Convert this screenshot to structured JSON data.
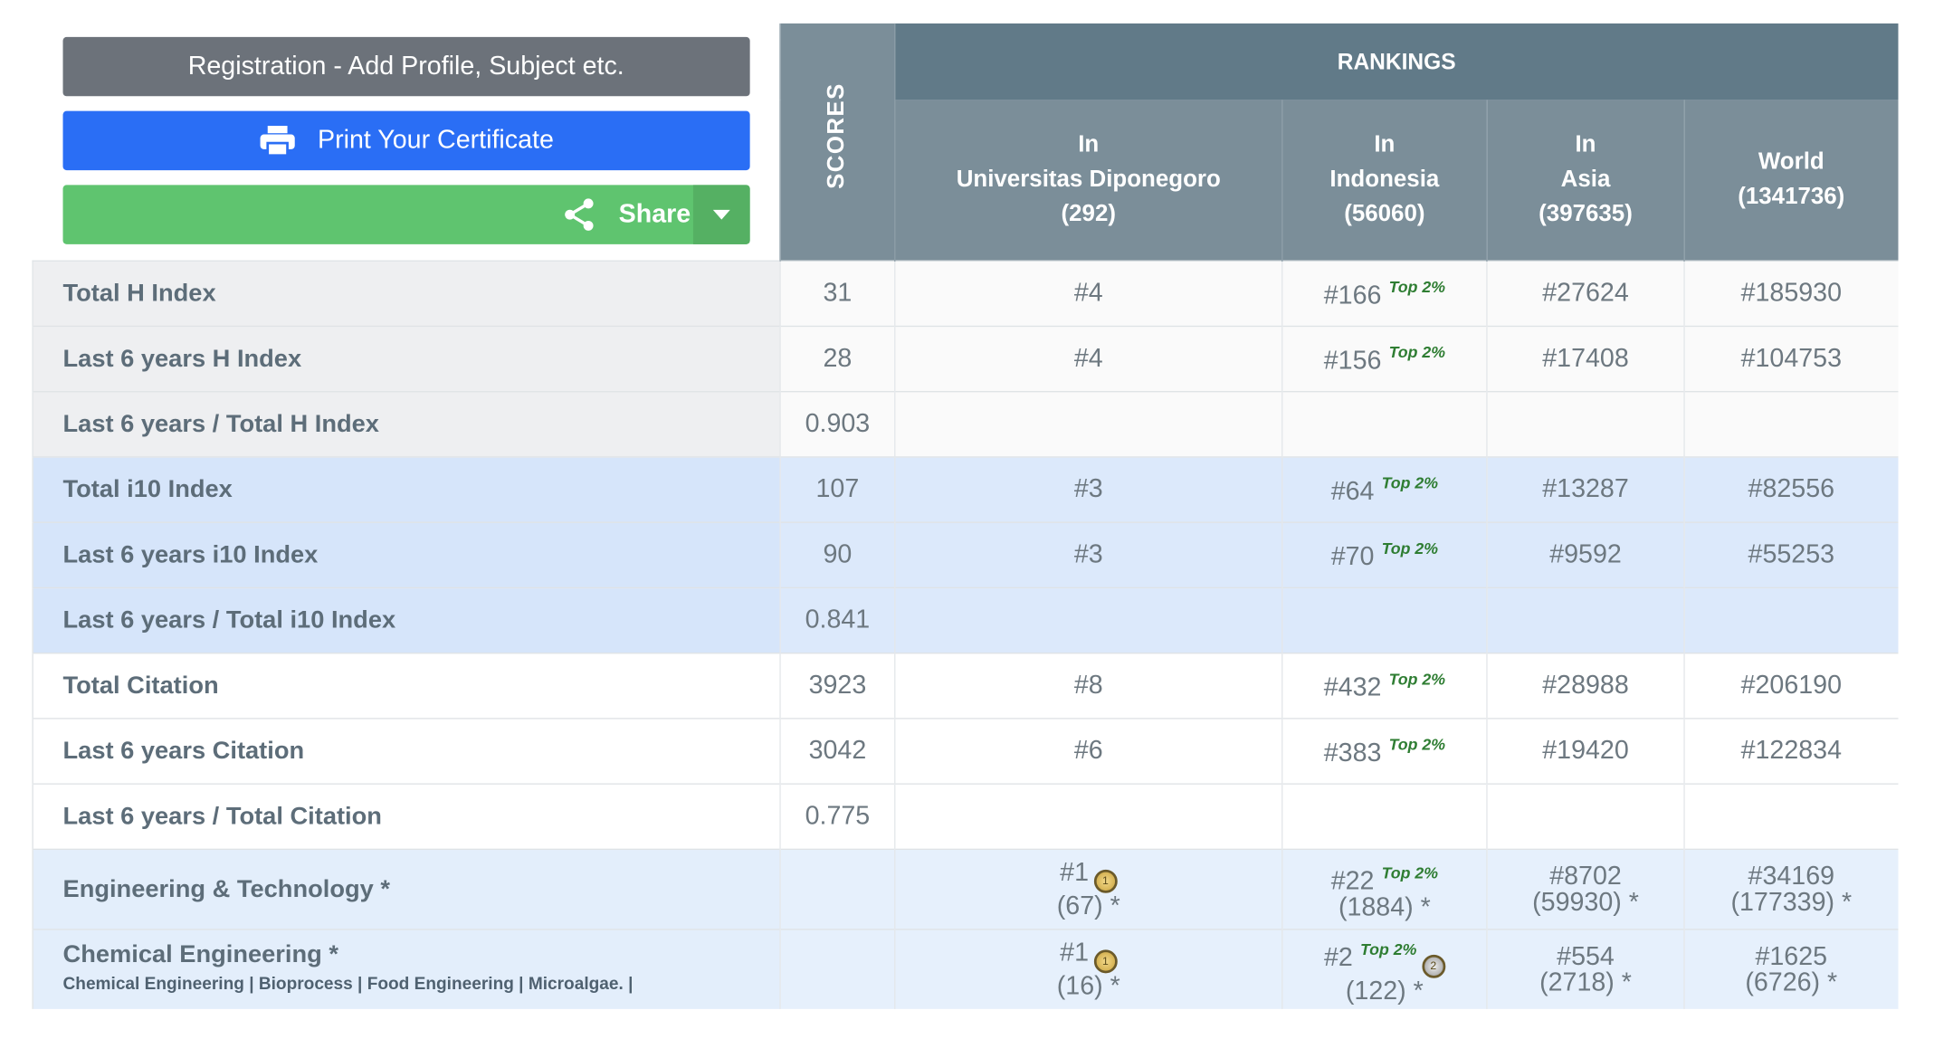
{
  "buttons": {
    "register": "Registration - Add Profile, Subject etc.",
    "print": "Print Your Certificate",
    "share": "Share"
  },
  "table": {
    "scores_header": "SCORES",
    "rankings_header": "RANKINGS",
    "columns": [
      {
        "lines": [
          "In",
          "Universitas Diponegoro",
          "(292)"
        ]
      },
      {
        "lines": [
          "In",
          "Indonesia",
          "(56060)"
        ]
      },
      {
        "lines": [
          "In",
          "Asia",
          "(397635)"
        ]
      },
      {
        "lines": [
          "World",
          "(1341736)"
        ]
      }
    ],
    "rows": [
      {
        "label": "Total H Index",
        "score": "31",
        "ranks": [
          {
            "rank": "#4"
          },
          {
            "rank": "#166",
            "badge": "Top 2%"
          },
          {
            "rank": "#27624"
          },
          {
            "rank": "#185930"
          }
        ]
      },
      {
        "label": "Last 6 years H Index",
        "score": "28",
        "ranks": [
          {
            "rank": "#4"
          },
          {
            "rank": "#156",
            "badge": "Top 2%"
          },
          {
            "rank": "#17408"
          },
          {
            "rank": "#104753"
          }
        ]
      },
      {
        "label": "Last 6 years / Total H Index",
        "score": "0.903"
      },
      {
        "label": "Total i10 Index",
        "score": "107",
        "ranks": [
          {
            "rank": "#3"
          },
          {
            "rank": "#64",
            "badge": "Top 2%"
          },
          {
            "rank": "#13287"
          },
          {
            "rank": "#82556"
          }
        ]
      },
      {
        "label": "Last 6 years i10 Index",
        "score": "90",
        "ranks": [
          {
            "rank": "#3"
          },
          {
            "rank": "#70",
            "badge": "Top 2%"
          },
          {
            "rank": "#9592"
          },
          {
            "rank": "#55253"
          }
        ]
      },
      {
        "label": "Last 6 years / Total i10 Index",
        "score": "0.841"
      },
      {
        "label": "Total Citation",
        "score": "3923",
        "ranks": [
          {
            "rank": "#8"
          },
          {
            "rank": "#432",
            "badge": "Top 2%"
          },
          {
            "rank": "#28988"
          },
          {
            "rank": "#206190"
          }
        ]
      },
      {
        "label": "Last 6 years Citation",
        "score": "3042",
        "ranks": [
          {
            "rank": "#6"
          },
          {
            "rank": "#383",
            "badge": "Top 2%"
          },
          {
            "rank": "#19420"
          },
          {
            "rank": "#122834"
          }
        ]
      },
      {
        "label": "Last 6 years / Total Citation",
        "score": "0.775"
      },
      {
        "label": "Engineering & Technology *",
        "ranks": [
          {
            "rank": "#1",
            "medal": "1",
            "count": "(67) *"
          },
          {
            "rank": "#22",
            "badge": "Top 2%",
            "count": "(1884) *"
          },
          {
            "rank": "#8702",
            "count": "(59930) *"
          },
          {
            "rank": "#34169",
            "count": "(177339) *"
          }
        ]
      },
      {
        "label": "Chemical Engineering *",
        "sub": "Chemical Engineering | Bioprocess | Food Engineering | Microalgae. |",
        "ranks": [
          {
            "rank": "#1",
            "medal": "1",
            "count": "(16) *"
          },
          {
            "rank": "#2",
            "badge": "Top 2%",
            "medal": "2",
            "count": "(122) *"
          },
          {
            "rank": "#554",
            "count": "(2718) *"
          },
          {
            "rank": "#1625",
            "count": "(6726) *"
          }
        ]
      }
    ]
  }
}
